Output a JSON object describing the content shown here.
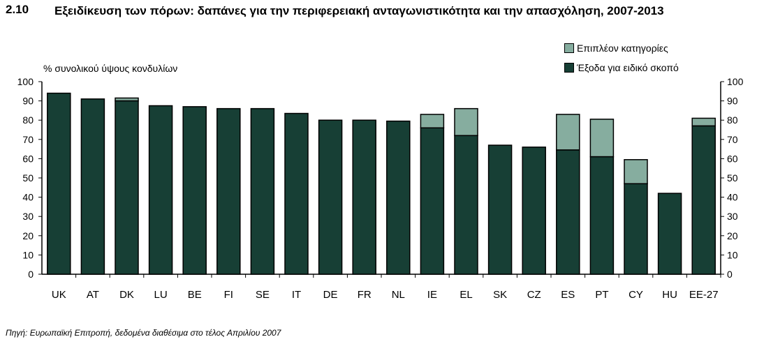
{
  "figure": {
    "number": "2.10",
    "title": "Εξειδίκευση των πόρων: δαπάνες για την περιφερειακή ανταγωνιστικότητα και την απασχόληση, 2007-2013",
    "source": "Πηγή: Ευρωπαϊκή Επιτροπή, δεδομένα διαθέσιμα στο τέλος Απριλίου 2007"
  },
  "colors": {
    "earmarked": "#173f35",
    "additional": "#86ad9f",
    "outline": "#000000"
  },
  "chart_data": {
    "type": "bar",
    "stacked": true,
    "ylabel": "% συνολικού ύψους κονδυλίων",
    "ylim": [
      0,
      100
    ],
    "yticks": [
      0,
      10,
      20,
      30,
      40,
      50,
      60,
      70,
      80,
      90,
      100
    ],
    "right_axis": true,
    "legend_position": "top-right",
    "categories": [
      "UK",
      "AT",
      "DK",
      "LU",
      "BE",
      "FI",
      "SE",
      "IT",
      "DE",
      "FR",
      "NL",
      "IE",
      "EL",
      "SK",
      "CZ",
      "ES",
      "PT",
      "CY",
      "HU",
      "EE-27"
    ],
    "series": [
      {
        "name": "Έξοδα για ειδικό σκοπό",
        "values": [
          94,
          91,
          90,
          87.5,
          87,
          86,
          86,
          83.5,
          80,
          80,
          79.5,
          76,
          72,
          67,
          66,
          64.5,
          61,
          47,
          42,
          77
        ]
      },
      {
        "name": "Επιπλέον κατηγορίες",
        "values": [
          0,
          0,
          1.5,
          0,
          0,
          0,
          0,
          0,
          0,
          0,
          0,
          7,
          14,
          0,
          0,
          18.5,
          19.5,
          12.5,
          0,
          4
        ]
      }
    ]
  }
}
